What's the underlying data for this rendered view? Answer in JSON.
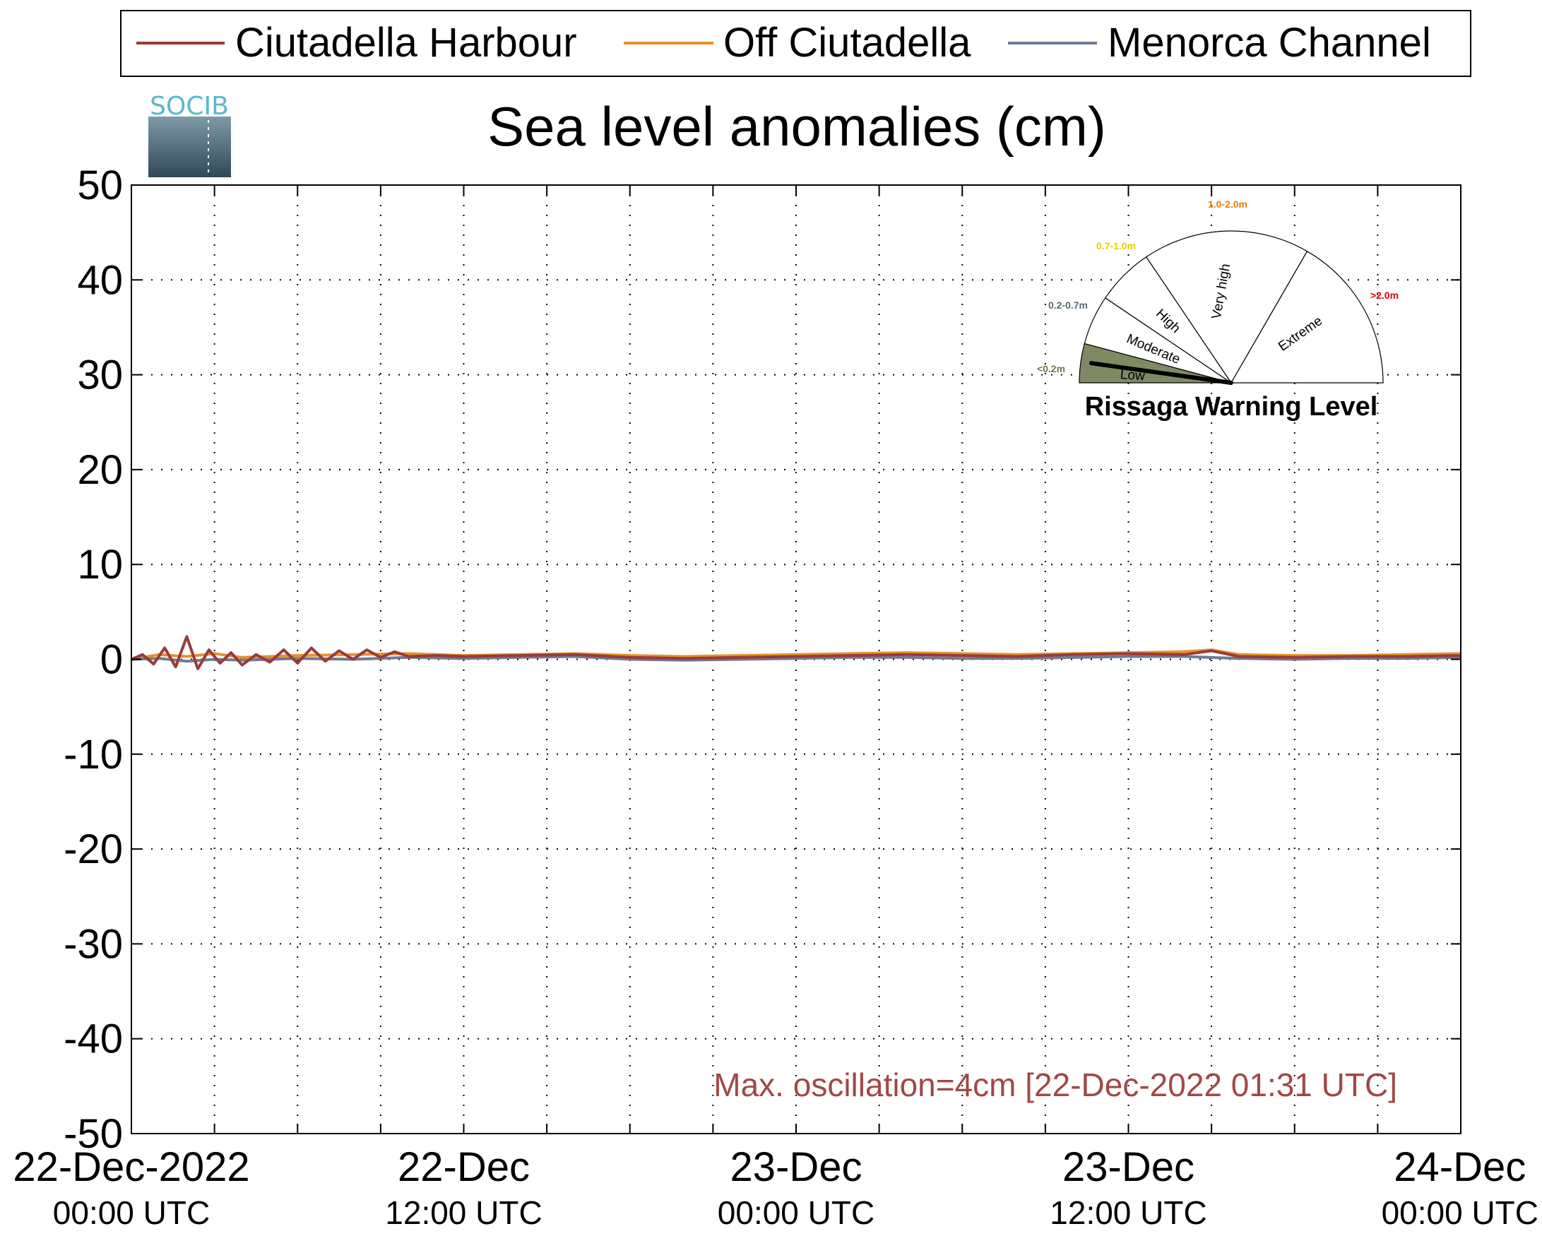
{
  "legend": {
    "placement": "top",
    "entries": [
      {
        "label": "Ciutadella Harbour",
        "color": "#9b3a3a"
      },
      {
        "label": "Off Ciutadella",
        "color": "#e8922a"
      },
      {
        "label": "Menorca Channel",
        "color": "#707a96"
      }
    ]
  },
  "logo": {
    "text": "SOCIB",
    "color": "#5ab8cc"
  },
  "annotation": {
    "text": "Max. oscillation=4cm [22-Dec-2022 01:31 UTC]",
    "color": "#a04848"
  },
  "gauge": {
    "title": "Rissaga Warning Level",
    "active_level": "Low",
    "active_color": "#7f8a63",
    "sectors": [
      {
        "label": "Low",
        "range": "<0.2m",
        "range_color": "#6b7a4a"
      },
      {
        "label": "Moderate",
        "range": "0.2-0.7m",
        "range_color": "#5a6a72"
      },
      {
        "label": "High",
        "range": "0.7-1.0m",
        "range_color": "#e6d000"
      },
      {
        "label": "Very high",
        "range": "1.0-2.0m",
        "range_color": "#f07d00"
      },
      {
        "label": "Extreme",
        "range": ">2.0m",
        "range_color": "#e00000"
      }
    ]
  },
  "chart_data": {
    "type": "line",
    "title": "Sea level anomalies (cm)",
    "xlabel": "",
    "ylabel": "",
    "ylim": [
      -50,
      50
    ],
    "yticks": [
      50,
      40,
      30,
      20,
      10,
      0,
      -10,
      -20,
      -30,
      -40,
      -50
    ],
    "xlim_hours": [
      0,
      48
    ],
    "grid": true,
    "x_tick_labels": [
      {
        "hour": 0,
        "date": "22-Dec-2022",
        "time": "00:00 UTC"
      },
      {
        "hour": 12,
        "date": "22-Dec",
        "time": "12:00 UTC"
      },
      {
        "hour": 24,
        "date": "23-Dec",
        "time": "00:00 UTC"
      },
      {
        "hour": 36,
        "date": "23-Dec",
        "time": "12:00 UTC"
      },
      {
        "hour": 48,
        "date": "24-Dec",
        "time": "00:00 UTC"
      }
    ],
    "series": [
      {
        "name": "Ciutadella Harbour",
        "color": "#9b3a3a",
        "x": [
          0,
          0.4,
          0.8,
          1.2,
          1.6,
          2.0,
          2.4,
          2.8,
          3.2,
          3.6,
          4.0,
          4.5,
          5.0,
          5.5,
          6.0,
          6.5,
          7.0,
          7.5,
          8.0,
          8.5,
          9.0,
          9.5,
          10,
          11,
          12,
          14,
          16,
          18,
          20,
          22,
          24,
          26,
          28,
          30,
          32,
          34,
          36,
          38,
          39,
          40,
          42,
          44,
          46,
          48
        ],
        "y": [
          0,
          0.5,
          -0.5,
          1.2,
          -0.8,
          2.4,
          -1.0,
          1.0,
          -0.4,
          0.7,
          -0.6,
          0.5,
          -0.3,
          1.0,
          -0.4,
          1.2,
          -0.2,
          0.9,
          0.0,
          1.0,
          0.2,
          0.8,
          0.3,
          0.4,
          0.3,
          0.4,
          0.5,
          0.2,
          0.1,
          0.2,
          0.3,
          0.4,
          0.5,
          0.4,
          0.3,
          0.5,
          0.6,
          0.5,
          0.9,
          0.3,
          0.2,
          0.3,
          0.3,
          0.4
        ]
      },
      {
        "name": "Off Ciutadella",
        "color": "#e8922a",
        "x": [
          0,
          1,
          2,
          3,
          4,
          6,
          8,
          10,
          12,
          14,
          16,
          18,
          20,
          22,
          24,
          26,
          28,
          30,
          32,
          34,
          36,
          38,
          39,
          40,
          42,
          44,
          46,
          48
        ],
        "y": [
          0,
          0.5,
          0.3,
          0.6,
          0.2,
          0.4,
          0.5,
          0.6,
          0.4,
          0.5,
          0.6,
          0.4,
          0.3,
          0.4,
          0.5,
          0.6,
          0.7,
          0.6,
          0.5,
          0.6,
          0.7,
          0.8,
          1.0,
          0.5,
          0.4,
          0.4,
          0.5,
          0.6
        ]
      },
      {
        "name": "Menorca Channel",
        "color": "#707a96",
        "x": [
          0,
          1,
          2,
          3,
          4,
          6,
          8,
          10,
          12,
          14,
          16,
          18,
          20,
          22,
          24,
          26,
          28,
          30,
          32,
          34,
          36,
          38,
          40,
          42,
          44,
          46,
          48
        ],
        "y": [
          0,
          0.1,
          -0.2,
          0.0,
          -0.1,
          0.1,
          0.0,
          0.2,
          0.1,
          0.2,
          0.3,
          0.0,
          -0.1,
          0.0,
          0.1,
          0.2,
          0.2,
          0.1,
          0.1,
          0.2,
          0.3,
          0.3,
          0.1,
          0.0,
          0.1,
          0.1,
          0.2
        ]
      }
    ]
  }
}
